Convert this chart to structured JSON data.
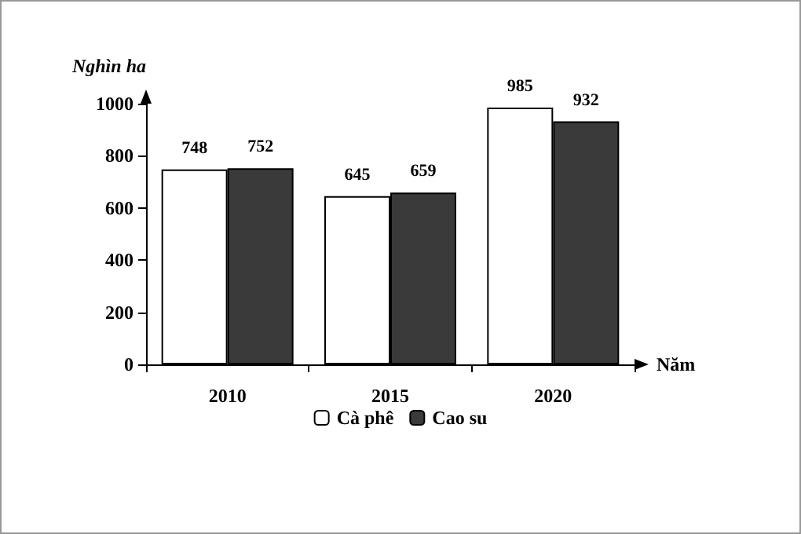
{
  "chart_data": {
    "type": "bar",
    "xlabel": "Năm",
    "ylabel": "Nghìn ha",
    "categories": [
      "2010",
      "2015",
      "2020"
    ],
    "series": [
      {
        "name": "Cà phê",
        "color": "#ffffff",
        "values": [
          748,
          645,
          985
        ]
      },
      {
        "name": "Cao su",
        "color": "#3a3a3a",
        "values": [
          752,
          659,
          932
        ]
      }
    ],
    "ylim": [
      0,
      1000
    ],
    "yticks": [
      0,
      200,
      400,
      600,
      800,
      1000
    ],
    "grid": false,
    "legend": "bottom",
    "data_labels": true
  }
}
